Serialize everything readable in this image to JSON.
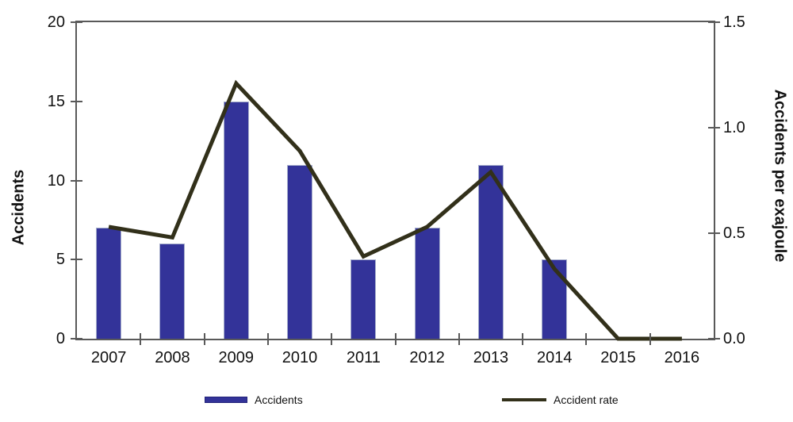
{
  "chart_data": {
    "type": "bar",
    "subtype": "combo-bar-line",
    "title": "",
    "categories": [
      "2007",
      "2008",
      "2009",
      "2010",
      "2011",
      "2012",
      "2013",
      "2014",
      "2015",
      "2016"
    ],
    "series": [
      {
        "name": "Accidents",
        "render": "bar",
        "axis": "left",
        "color": "#333399",
        "border_color": "#a6aecb",
        "values": [
          7,
          6,
          15,
          11,
          5,
          7,
          11,
          5,
          0,
          0
        ]
      },
      {
        "name": "Accident rate",
        "render": "line",
        "axis": "right",
        "color": "#32301a",
        "stroke_width": 5,
        "values": [
          0.53,
          0.48,
          1.21,
          0.89,
          0.39,
          0.53,
          0.79,
          0.33,
          0,
          0
        ]
      }
    ],
    "left_axis": {
      "label": "Accidents",
      "min": 0,
      "max": 20,
      "ticks": [
        "0",
        "5",
        "10",
        "15",
        "20"
      ]
    },
    "right_axis": {
      "label": "Accidents per exajoule",
      "min": 0,
      "max": 1.5,
      "ticks": [
        "0.0",
        "0.5",
        "1.0",
        "1.5"
      ]
    },
    "x_axis": {
      "tick_style": "between-categories"
    },
    "grid": false,
    "frame_color": "#595959",
    "legend": {
      "position": "bottom",
      "items": [
        {
          "label": "Accidents",
          "swatch": "bar"
        },
        {
          "label": "Accident rate",
          "swatch": "line"
        }
      ]
    }
  }
}
